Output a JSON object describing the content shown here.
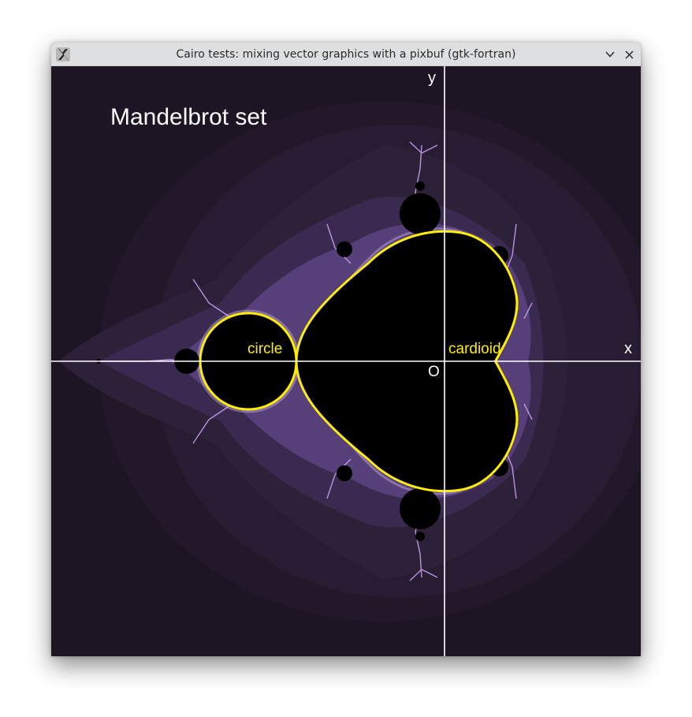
{
  "window": {
    "title": "Cairo tests: mixing vector graphics with a pixbuf (gtk-fortran)",
    "app_icon": "x11-icon",
    "buttons": {
      "minimize": "chevron-down-icon",
      "close": "close-icon"
    }
  },
  "figure": {
    "title": "Mandelbrot set",
    "axis_x_label": "x",
    "axis_y_label": "y",
    "origin_label": "O",
    "circle_label": "circle",
    "cardioid_label": "cardioid",
    "colors": {
      "background": "#1d1424",
      "outline": "#ffee00",
      "axes": "#ffffff",
      "set": "#000000",
      "fringe": "#c9a2f0"
    }
  }
}
